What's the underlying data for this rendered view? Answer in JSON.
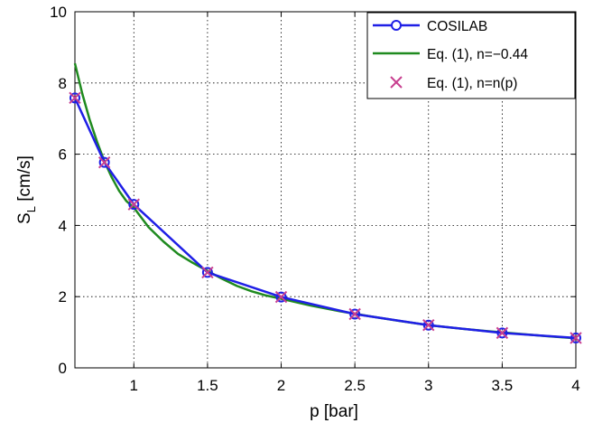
{
  "chart_data": {
    "type": "line",
    "xlabel": "p [bar]",
    "ylabel_main": "S",
    "ylabel_sub": "L",
    "ylabel_unit": " [cm/s]",
    "xlim": [
      0.6,
      4
    ],
    "ylim": [
      0,
      10
    ],
    "xticks": [
      1,
      1.5,
      2,
      2.5,
      3,
      3.5,
      4
    ],
    "xtick_labels": [
      "1",
      "1.5",
      "2",
      "2.5",
      "3",
      "3.5",
      "4"
    ],
    "yticks": [
      0,
      2,
      4,
      6,
      8,
      10
    ],
    "ytick_labels": [
      "0",
      "2",
      "4",
      "6",
      "8",
      "10"
    ],
    "grid": true,
    "legend_position": "top-right",
    "series": [
      {
        "name": "COSILAB",
        "style": "line-with-circle-markers",
        "color": "#1f1fe6",
        "x": [
          0.6,
          0.8,
          1.0,
          1.5,
          2.0,
          2.5,
          3.0,
          3.5,
          4.0
        ],
        "y": [
          7.58,
          5.77,
          4.59,
          2.68,
          1.99,
          1.51,
          1.2,
          0.98,
          0.84
        ]
      },
      {
        "name": "Eq. (1), n=−0.44",
        "style": "line",
        "color": "#1f8a1f",
        "x": [
          0.6,
          0.65,
          0.7,
          0.75,
          0.8,
          0.85,
          0.9,
          0.95,
          1.0,
          1.1,
          1.2,
          1.3,
          1.4,
          1.5,
          1.6,
          1.7,
          1.8,
          1.9,
          2.0,
          2.2,
          2.4,
          2.6,
          2.8,
          3.0,
          3.2,
          3.4,
          3.6,
          3.8,
          4.0
        ],
        "y": [
          8.55,
          7.7,
          6.97,
          6.35,
          5.8,
          5.35,
          4.97,
          4.68,
          4.5,
          3.95,
          3.55,
          3.2,
          2.95,
          2.72,
          2.5,
          2.3,
          2.15,
          2.03,
          1.94,
          1.75,
          1.59,
          1.45,
          1.32,
          1.2,
          1.11,
          1.03,
          0.96,
          0.89,
          0.83
        ]
      },
      {
        "name": "Eq. (1), n=n(p)",
        "style": "x-markers",
        "color": "#c8408f",
        "x": [
          0.6,
          0.8,
          1.0,
          1.5,
          2.0,
          2.5,
          3.0,
          3.5,
          4.0
        ],
        "y": [
          7.58,
          5.77,
          4.59,
          2.68,
          1.99,
          1.51,
          1.2,
          0.98,
          0.84
        ]
      }
    ]
  }
}
